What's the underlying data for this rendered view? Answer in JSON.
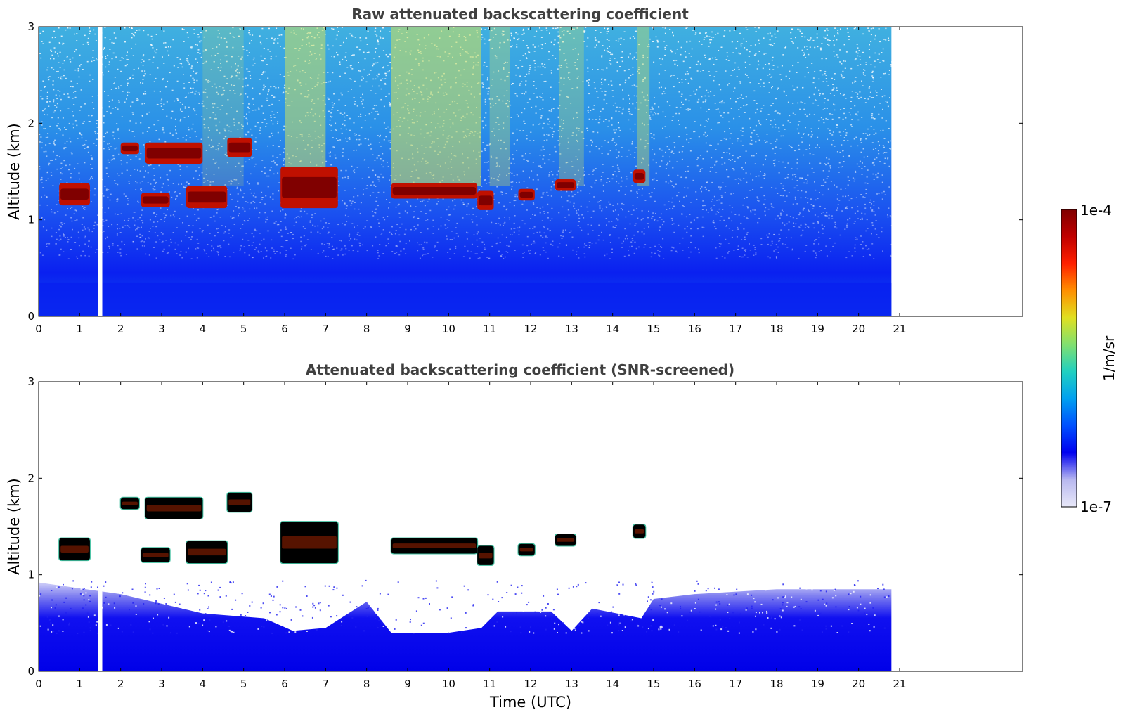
{
  "chart_data": [
    {
      "type": "heatmap",
      "title": "Raw attenuated backscattering coefficient",
      "xlabel": "",
      "ylabel": "Altitude (km)",
      "xlim": [
        0,
        24
      ],
      "ylim": [
        0,
        3
      ],
      "x_ticks": [
        "0",
        "1",
        "2",
        "3",
        "4",
        "5",
        "6",
        "7",
        "8",
        "9",
        "10",
        "11",
        "12",
        "13",
        "14",
        "15",
        "16",
        "17",
        "18",
        "19",
        "20",
        "21"
      ],
      "y_ticks": [
        "0",
        "1",
        "2",
        "3"
      ],
      "data_end_time": 20.8,
      "gap_time": 1.5,
      "cloud_layers": [
        {
          "t_start": 0.5,
          "t_end": 1.25,
          "z_bottom": 1.15,
          "z_top": 1.38
        },
        {
          "t_start": 2.0,
          "t_end": 2.45,
          "z_bottom": 1.68,
          "z_top": 1.8
        },
        {
          "t_start": 2.6,
          "t_end": 4.0,
          "z_bottom": 1.58,
          "z_top": 1.8
        },
        {
          "t_start": 2.5,
          "t_end": 3.2,
          "z_bottom": 1.13,
          "z_top": 1.28
        },
        {
          "t_start": 3.6,
          "t_end": 4.6,
          "z_bottom": 1.12,
          "z_top": 1.35
        },
        {
          "t_start": 4.6,
          "t_end": 5.2,
          "z_bottom": 1.65,
          "z_top": 1.85
        },
        {
          "t_start": 5.9,
          "t_end": 7.3,
          "z_bottom": 1.12,
          "z_top": 1.55
        },
        {
          "t_start": 8.6,
          "t_end": 10.7,
          "z_bottom": 1.22,
          "z_top": 1.38
        },
        {
          "t_start": 10.7,
          "t_end": 11.1,
          "z_bottom": 1.1,
          "z_top": 1.3
        },
        {
          "t_start": 11.7,
          "t_end": 12.1,
          "z_bottom": 1.2,
          "z_top": 1.32
        },
        {
          "t_start": 12.6,
          "t_end": 13.1,
          "z_bottom": 1.3,
          "z_top": 1.42
        },
        {
          "t_start": 14.5,
          "t_end": 14.8,
          "z_bottom": 1.38,
          "z_top": 1.52
        }
      ]
    },
    {
      "type": "heatmap",
      "title": "Attenuated backscattering coefficient (SNR-screened)",
      "xlabel": "Time (UTC)",
      "ylabel": "Altitude (km)",
      "xlim": [
        0,
        24
      ],
      "ylim": [
        0,
        3
      ],
      "x_ticks": [
        "0",
        "1",
        "2",
        "3",
        "4",
        "5",
        "6",
        "7",
        "8",
        "9",
        "10",
        "11",
        "12",
        "13",
        "14",
        "15",
        "16",
        "17",
        "18",
        "19",
        "20",
        "21"
      ],
      "y_ticks": [
        "0",
        "1",
        "2",
        "3"
      ],
      "data_end_time": 20.8,
      "gap_time": 1.5,
      "boundary_layer_top_km": [
        [
          0,
          0.92
        ],
        [
          2,
          0.8
        ],
        [
          4,
          0.6
        ],
        [
          5.5,
          0.55
        ],
        [
          6.2,
          0.42
        ],
        [
          7,
          0.45
        ],
        [
          8,
          0.72
        ],
        [
          8.6,
          0.4
        ],
        [
          10,
          0.4
        ],
        [
          10.8,
          0.45
        ],
        [
          11.2,
          0.62
        ],
        [
          12.5,
          0.62
        ],
        [
          13,
          0.42
        ],
        [
          13.5,
          0.65
        ],
        [
          14.7,
          0.55
        ],
        [
          15,
          0.75
        ],
        [
          16,
          0.8
        ],
        [
          18,
          0.85
        ],
        [
          20.8,
          0.85
        ]
      ]
    }
  ],
  "colorbar": {
    "label": "1/m/sr",
    "max_label": "1e-4",
    "min_label": "1e-7",
    "colormap": [
      "#e8e8f8",
      "#b8b8f0",
      "#0000f0",
      "#0050ff",
      "#00a0f0",
      "#20d0c0",
      "#80e070",
      "#e0e020",
      "#ff9000",
      "#ff2000",
      "#c00000",
      "#800000"
    ]
  }
}
